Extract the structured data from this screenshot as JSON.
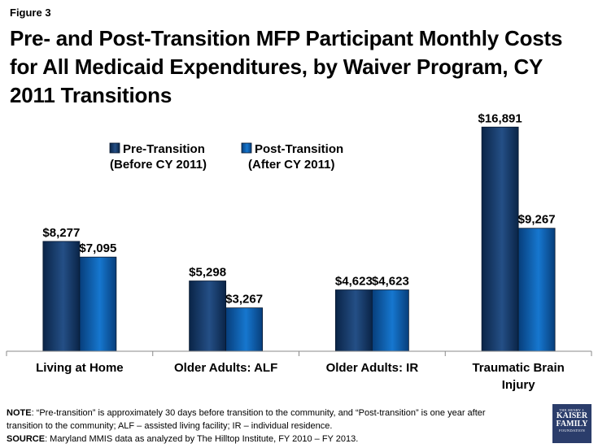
{
  "figure_label": "Figure 3",
  "title": "Pre- and Post-Transition MFP Participant Monthly Costs for All Medicaid Expenditures, by Waiver Program, CY 2011 Transitions",
  "chart_data": {
    "type": "bar",
    "categories": [
      "Living at Home",
      "Older Adults: ALF",
      "Older Adults: IR",
      "Traumatic Brain Injury"
    ],
    "series": [
      {
        "name": "Pre-Transition (Before CY 2011)",
        "values": [
          8277,
          5298,
          4623,
          16891
        ],
        "labels": [
          "$8,277",
          "$5,298",
          "$4,623",
          "$16,891"
        ],
        "color": "#17375e"
      },
      {
        "name": "Post-Transition (After CY 2011)",
        "values": [
          7095,
          3267,
          4623,
          9267
        ],
        "labels": [
          "$7,095",
          "$3,267",
          "$4,623",
          "$9,267"
        ],
        "color": "#0b5aa8"
      }
    ],
    "legend": [
      {
        "line1": "Pre-Transition",
        "line2": "(Before CY 2011)"
      },
      {
        "line1": "Post-Transition",
        "line2": "(After CY 2011)"
      }
    ],
    "ylim": [
      0,
      18500
    ],
    "legend_position": "top-left",
    "gridlines": false
  },
  "notes": {
    "note_label": "NOTE",
    "note_text": ": “Pre-transition” is approximately 30 days before transition to the community, and “Post-transition” is one year after transition to the community; ALF – assisted living facility; IR – individual residence.",
    "source_label": "SOURCE",
    "source_text": ": Maryland MMIS data as analyzed by The Hilltop Institute, FY 2010 – FY 2013."
  },
  "logo": {
    "line1": "THE HENRY J.",
    "line2": "KAISER",
    "line3": "FAMILY",
    "line4": "FOUNDATION"
  }
}
